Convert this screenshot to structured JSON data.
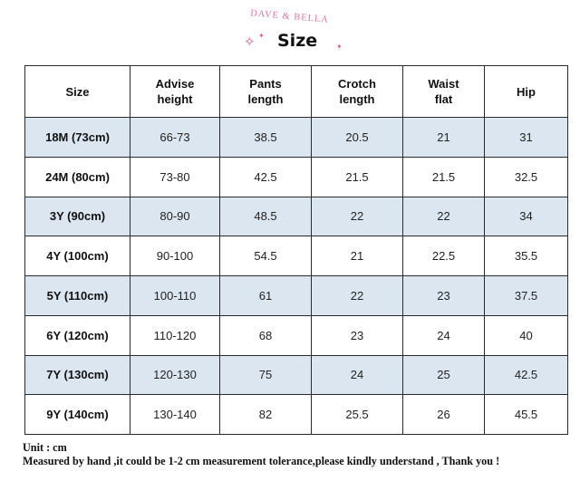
{
  "header": {
    "brand": "DAVE & BELLA",
    "title": "Size",
    "sparkle_color": "#e05a8a",
    "brand_color": "#e8729a"
  },
  "table": {
    "shade_color": "#dce6f1",
    "columns": [
      [
        "Size"
      ],
      [
        "Advise",
        "height"
      ],
      [
        "Pants",
        "length"
      ],
      [
        "Crotch",
        "length"
      ],
      [
        "Waist",
        "flat"
      ],
      [
        "Hip"
      ]
    ],
    "rows": [
      [
        "18M (73cm)",
        "66-73",
        "38.5",
        "20.5",
        "21",
        "31"
      ],
      [
        "24M (80cm)",
        "73-80",
        "42.5",
        "21.5",
        "21.5",
        "32.5"
      ],
      [
        "3Y (90cm)",
        "80-90",
        "48.5",
        "22",
        "22",
        "34"
      ],
      [
        "4Y (100cm)",
        "90-100",
        "54.5",
        "21",
        "22.5",
        "35.5"
      ],
      [
        "5Y (110cm)",
        "100-110",
        "61",
        "22",
        "23",
        "37.5"
      ],
      [
        "6Y (120cm)",
        "110-120",
        "68",
        "23",
        "24",
        "40"
      ],
      [
        "7Y (130cm)",
        "120-130",
        "75",
        "24",
        "25",
        "42.5"
      ],
      [
        "9Y (140cm)",
        "130-140",
        "82",
        "25.5",
        "26",
        "45.5"
      ]
    ]
  },
  "notes": {
    "unit": "Unit : cm",
    "tolerance": "Measured by hand ,it could be 1-2 cm measurement tolerance,please kindly understand , Thank you !"
  }
}
